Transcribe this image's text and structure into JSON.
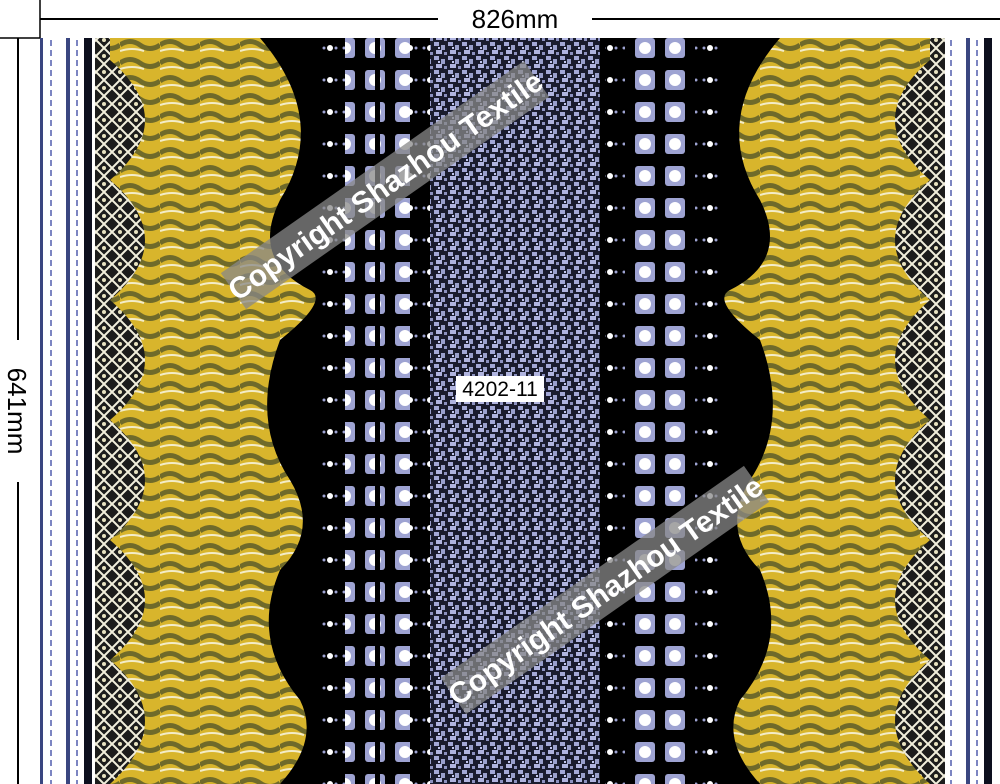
{
  "dimensions": {
    "width": "826mm",
    "height": "641mm"
  },
  "design_code": "4202-11",
  "watermarks": [
    "Copyright Shazhou Textile",
    "Copyright Shazhou Textile"
  ]
}
